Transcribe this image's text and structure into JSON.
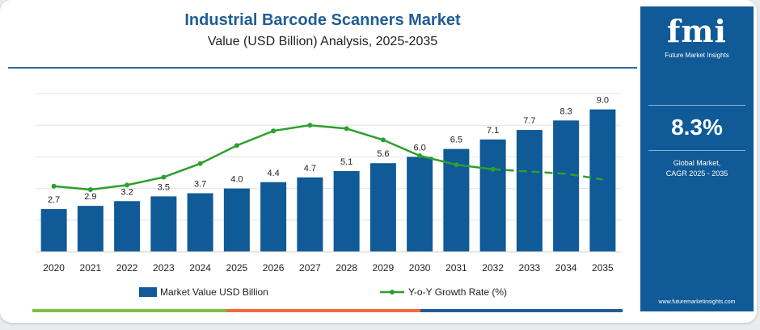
{
  "header": {
    "title": "Industrial Barcode Scanners Market",
    "subtitle": "Value (USD Billion) Analysis, 2025-2035"
  },
  "sidebar": {
    "logo_text": "fmi",
    "logo_subtitle": "Future Market Insights",
    "cagr_value": "8.3%",
    "cagr_label_line1": "Global Market,",
    "cagr_label_line2": "CAGR 2025 - 2035",
    "url": "www.futuremarketinsights.com"
  },
  "colors": {
    "bar": "#0f5a97",
    "line": "#2ca02c",
    "brand": "#0f5a97",
    "title": "#1f5d94",
    "footer_segments": [
      "#7cc142",
      "#f26b3a",
      "#1f5d94"
    ]
  },
  "chart_data": {
    "type": "bar",
    "categories": [
      "2020",
      "2021",
      "2022",
      "2023",
      "2024",
      "2025",
      "2026",
      "2027",
      "2028",
      "2029",
      "2030",
      "2031",
      "2032",
      "2033",
      "2034",
      "2035"
    ],
    "series": [
      {
        "name": "Market Value USD Billion",
        "type": "bar",
        "values": [
          2.7,
          2.9,
          3.2,
          3.5,
          3.7,
          4.0,
          4.4,
          4.7,
          5.1,
          5.6,
          6.0,
          6.5,
          7.1,
          7.7,
          8.3,
          9.0
        ],
        "value_labels": [
          "2.7",
          "2.9",
          "3.2",
          "3.5",
          "3.7",
          "4.0",
          "4.4",
          "4.7",
          "5.1",
          "5.6",
          "6.0",
          "6.5",
          "7.1",
          "7.7",
          "8.3",
          "9.0"
        ]
      },
      {
        "name": "Y-o-Y Growth Rate (%)",
        "type": "line",
        "values": [
          5.8,
          5.5,
          5.9,
          6.6,
          7.8,
          9.4,
          10.7,
          11.2,
          10.9,
          9.9,
          8.5,
          7.7,
          7.3,
          7.1,
          6.9,
          6.4
        ],
        "dashed_from_index": 12
      }
    ],
    "ylim": [
      0,
      10
    ],
    "y2lim": [
      0,
      14
    ],
    "grid": true,
    "legend": "bottom-center"
  }
}
